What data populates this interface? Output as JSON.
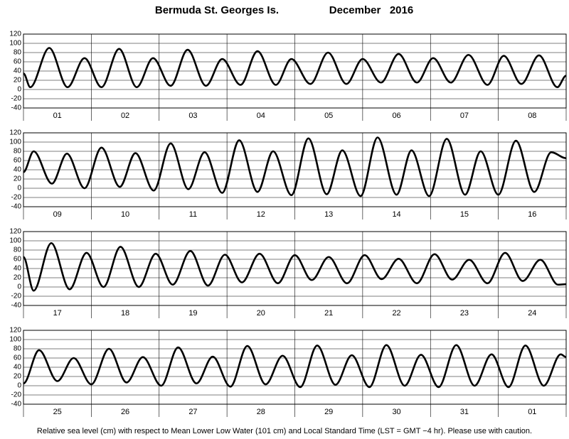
{
  "title": "Bermuda St. Georges Is.",
  "period": "December   2016",
  "footnote": "Relative sea level (cm) with respect to Mean Lower Low Water (101 cm) and Local Standard Time (LST = GMT −4 hr). Please use with caution.",
  "chart_data": [
    {
      "type": "line",
      "xlim": [
        0,
        8
      ],
      "ylim": [
        -40,
        120
      ],
      "yticks": [
        -40,
        -20,
        0,
        20,
        40,
        60,
        80,
        100,
        120
      ],
      "grid": true,
      "xticks": [
        {
          "value": 0.5,
          "label": "01"
        },
        {
          "value": 1.5,
          "label": "02"
        },
        {
          "value": 2.5,
          "label": "03"
        },
        {
          "value": 3.5,
          "label": "04"
        },
        {
          "value": 4.5,
          "label": "05"
        },
        {
          "value": 5.5,
          "label": "06"
        },
        {
          "value": 6.5,
          "label": "07"
        },
        {
          "value": 7.5,
          "label": "08"
        }
      ],
      "x": [
        0,
        0.1,
        0.38,
        0.65,
        0.9,
        1.15,
        1.41,
        1.67,
        1.91,
        2.17,
        2.42,
        2.69,
        2.93,
        3.2,
        3.45,
        3.72,
        3.95,
        4.23,
        4.49,
        4.76,
        5.0,
        5.27,
        5.53,
        5.8,
        6.04,
        6.3,
        6.56,
        6.84,
        7.08,
        7.34,
        7.6,
        7.87,
        8.0
      ],
      "values": [
        35,
        5,
        90,
        5,
        68,
        5,
        88,
        5,
        68,
        8,
        86,
        8,
        66,
        10,
        83,
        10,
        66,
        12,
        80,
        12,
        66,
        15,
        77,
        15,
        68,
        15,
        75,
        10,
        73,
        12,
        74,
        5,
        30
      ],
      "color": "#000000"
    },
    {
      "type": "line",
      "xlim": [
        0,
        8
      ],
      "ylim": [
        -40,
        120
      ],
      "yticks": [
        -40,
        -20,
        0,
        20,
        40,
        60,
        80,
        100,
        120
      ],
      "grid": true,
      "xticks": [
        {
          "value": 0.5,
          "label": "09"
        },
        {
          "value": 1.5,
          "label": "10"
        },
        {
          "value": 2.5,
          "label": "11"
        },
        {
          "value": 3.5,
          "label": "12"
        },
        {
          "value": 4.5,
          "label": "13"
        },
        {
          "value": 5.5,
          "label": "14"
        },
        {
          "value": 6.5,
          "label": "15"
        },
        {
          "value": 7.5,
          "label": "16"
        }
      ],
      "x": [
        0,
        0.15,
        0.42,
        0.64,
        0.9,
        1.15,
        1.42,
        1.65,
        1.92,
        2.17,
        2.43,
        2.67,
        2.93,
        3.18,
        3.45,
        3.68,
        3.95,
        4.2,
        4.47,
        4.7,
        4.97,
        5.22,
        5.5,
        5.72,
        5.98,
        6.24,
        6.51,
        6.74,
        7.0,
        7.26,
        7.53,
        7.78,
        8.0
      ],
      "values": [
        35,
        80,
        10,
        75,
        0,
        88,
        3,
        76,
        -5,
        97,
        -2,
        78,
        -10,
        104,
        -8,
        80,
        -15,
        108,
        -13,
        82,
        -17,
        110,
        -14,
        82,
        -17,
        107,
        -14,
        80,
        -14,
        103,
        -8,
        78,
        65
      ],
      "color": "#000000"
    },
    {
      "type": "line",
      "xlim": [
        0,
        8
      ],
      "ylim": [
        -40,
        120
      ],
      "yticks": [
        -40,
        -20,
        0,
        20,
        40,
        60,
        80,
        100,
        120
      ],
      "grid": true,
      "xticks": [
        {
          "value": 0.5,
          "label": "17"
        },
        {
          "value": 1.5,
          "label": "18"
        },
        {
          "value": 2.5,
          "label": "19"
        },
        {
          "value": 3.5,
          "label": "20"
        },
        {
          "value": 4.5,
          "label": "21"
        },
        {
          "value": 5.5,
          "label": "22"
        },
        {
          "value": 6.5,
          "label": "23"
        },
        {
          "value": 7.5,
          "label": "24"
        }
      ],
      "x": [
        0,
        0.15,
        0.41,
        0.68,
        0.93,
        1.18,
        1.43,
        1.7,
        1.95,
        2.2,
        2.46,
        2.72,
        2.97,
        3.22,
        3.48,
        3.75,
        4.0,
        4.25,
        4.5,
        4.77,
        5.03,
        5.28,
        5.53,
        5.8,
        6.06,
        6.32,
        6.57,
        6.84,
        7.1,
        7.36,
        7.62,
        7.88,
        8.0
      ],
      "values": [
        65,
        -8,
        95,
        -5,
        74,
        0,
        87,
        0,
        72,
        5,
        78,
        3,
        70,
        10,
        72,
        8,
        69,
        15,
        65,
        8,
        69,
        17,
        61,
        8,
        71,
        16,
        59,
        8,
        74,
        13,
        59,
        5,
        6
      ],
      "color": "#000000"
    },
    {
      "type": "line",
      "xlim": [
        0,
        8
      ],
      "ylim": [
        -40,
        120
      ],
      "yticks": [
        -40,
        -20,
        0,
        20,
        40,
        60,
        80,
        100,
        120
      ],
      "grid": true,
      "xticks": [
        {
          "value": 0.5,
          "label": "25"
        },
        {
          "value": 1.5,
          "label": "26"
        },
        {
          "value": 2.5,
          "label": "27"
        },
        {
          "value": 3.5,
          "label": "28"
        },
        {
          "value": 4.5,
          "label": "29"
        },
        {
          "value": 5.5,
          "label": "30"
        },
        {
          "value": 6.5,
          "label": "31"
        },
        {
          "value": 7.5,
          "label": "01"
        }
      ],
      "x": [
        0,
        0.23,
        0.5,
        0.74,
        1.0,
        1.26,
        1.52,
        1.76,
        2.03,
        2.28,
        2.55,
        2.79,
        3.05,
        3.3,
        3.57,
        3.82,
        4.08,
        4.33,
        4.6,
        4.84,
        5.1,
        5.35,
        5.62,
        5.86,
        6.12,
        6.38,
        6.65,
        6.9,
        7.15,
        7.4,
        7.67,
        7.92,
        8.0
      ],
      "values": [
        5,
        77,
        10,
        60,
        3,
        80,
        7,
        62,
        0,
        83,
        5,
        63,
        -2,
        86,
        3,
        65,
        -3,
        87,
        2,
        66,
        -3,
        88,
        0,
        67,
        -3,
        88,
        0,
        68,
        -3,
        87,
        0,
        68,
        62
      ],
      "color": "#000000"
    }
  ]
}
